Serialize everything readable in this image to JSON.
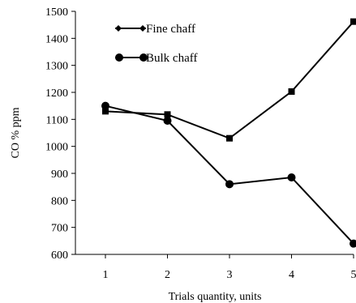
{
  "chart_data": {
    "type": "line",
    "title": "",
    "xlabel": "Trials quantity, units",
    "ylabel": "CO % ppm",
    "categories": [
      "1",
      "2",
      "3",
      "4",
      "5"
    ],
    "x": [
      1,
      2,
      3,
      4,
      5
    ],
    "ylim": [
      600,
      1500
    ],
    "yticks": [
      600,
      700,
      800,
      900,
      1000,
      1100,
      1200,
      1300,
      1400,
      1500
    ],
    "grid": false,
    "legend": "top-left",
    "series": [
      {
        "name": "Fine chaff",
        "marker": "diamond",
        "values": [
          1130,
          1118,
          1030,
          1203,
          1462
        ],
        "color": "#000000"
      },
      {
        "name": "Bulk chaff",
        "marker": "circle",
        "values": [
          1150,
          1095,
          860,
          885,
          640
        ],
        "color": "#000000"
      }
    ]
  }
}
